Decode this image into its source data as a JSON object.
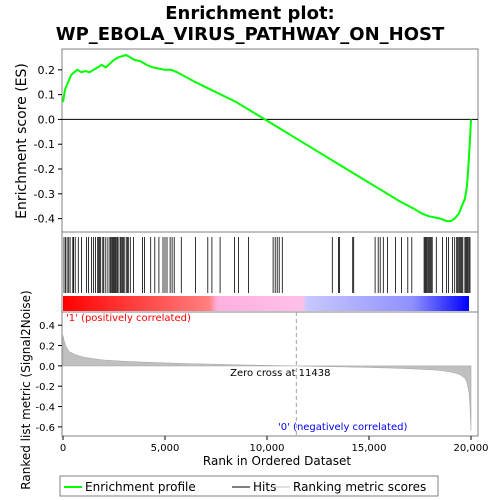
{
  "chart_data": {
    "type": "line",
    "title_line1": "Enrichment plot:",
    "title_line2": "WP_EBOLA_VIRUS_PATHWAY_ON_HOST",
    "es_panel": {
      "ylabel": "Enrichment score (ES)",
      "ylim": [
        -0.45,
        0.28
      ],
      "yticks": [
        "0.2",
        "0.1",
        "0.0",
        "-0.1",
        "-0.2",
        "-0.3",
        "-0.4"
      ],
      "ytick_values": [
        0.2,
        0.1,
        0.0,
        -0.1,
        -0.2,
        -0.3,
        -0.4
      ],
      "color": "#00ff00",
      "grid": false,
      "series": {
        "name": "Enrichment profile",
        "x": [
          0,
          100,
          250,
          400,
          550,
          700,
          900,
          1100,
          1300,
          1500,
          1700,
          1900,
          2100,
          2300,
          2500,
          2700,
          2900,
          3100,
          3300,
          3500,
          3800,
          4100,
          4400,
          4700,
          5000,
          5300,
          5600,
          6500,
          7500,
          8500,
          9500,
          10500,
          11500,
          12500,
          13500,
          14500,
          15500,
          16500,
          17200,
          17600,
          17900,
          18200,
          18500,
          18800,
          19000,
          19200,
          19400,
          19600,
          19700,
          19800,
          19850,
          19900,
          19950,
          20000
        ],
        "y": [
          0.07,
          0.12,
          0.15,
          0.18,
          0.19,
          0.2,
          0.19,
          0.195,
          0.19,
          0.2,
          0.21,
          0.22,
          0.21,
          0.225,
          0.24,
          0.25,
          0.255,
          0.26,
          0.25,
          0.24,
          0.235,
          0.22,
          0.21,
          0.205,
          0.2,
          0.2,
          0.19,
          0.15,
          0.11,
          0.07,
          0.02,
          -0.03,
          -0.08,
          -0.13,
          -0.18,
          -0.23,
          -0.28,
          -0.33,
          -0.36,
          -0.38,
          -0.39,
          -0.395,
          -0.4,
          -0.41,
          -0.41,
          -0.4,
          -0.38,
          -0.34,
          -0.32,
          -0.27,
          -0.22,
          -0.15,
          -0.08,
          0.0
        ]
      }
    },
    "hits": {
      "name": "Hits",
      "positions": [
        50,
        120,
        200,
        280,
        350,
        480,
        520,
        600,
        750,
        900,
        1150,
        1250,
        1400,
        1500,
        1600,
        1700,
        1750,
        1800,
        1850,
        1950,
        2000,
        2100,
        2200,
        2300,
        2350,
        2400,
        2450,
        2500,
        2550,
        2600,
        2650,
        2700,
        2800,
        2850,
        2900,
        2950,
        3000,
        3100,
        3150,
        3200,
        3300,
        3450,
        3900,
        4000,
        4300,
        4500,
        4700,
        4900,
        5000,
        5100,
        5250,
        5350,
        5450,
        5800,
        6500,
        7100,
        7300,
        7700,
        8400,
        8600,
        9100,
        10300,
        10400,
        10500,
        10600,
        10750,
        13200,
        13500,
        13550,
        14200,
        14250,
        15300,
        15450,
        15550,
        15700,
        15900,
        16300,
        16600,
        16900,
        17100,
        17700,
        17750,
        17800,
        17850,
        17900,
        17950,
        18000,
        18050,
        18100,
        18300,
        18600,
        18800,
        18900,
        19100,
        19200,
        19300,
        19350,
        19400,
        19450,
        19500,
        19550,
        19600,
        19700,
        19750,
        19800,
        19850,
        19900,
        19950
      ]
    },
    "rank_panel": {
      "ylabel": "Ranked list metric (Signal2Noise)",
      "xlabel": "Rank in Ordered Dataset",
      "xlim": [
        0,
        20000
      ],
      "ylim": [
        -0.68,
        0.52
      ],
      "yticks": [
        "0.4",
        "0.2",
        "0.0",
        "-0.2",
        "-0.4",
        "-0.6"
      ],
      "ytick_values": [
        0.4,
        0.2,
        0.0,
        -0.2,
        -0.4,
        -0.6
      ],
      "xticks": [
        "0",
        "5,000",
        "10,000",
        "15,000",
        "20,000"
      ],
      "xtick_values": [
        0,
        5000,
        10000,
        15000,
        20000
      ],
      "zero_cross_label": "Zero cross at 11438",
      "zero_cross": 11438,
      "pos_label": "'1' (positively correlated)",
      "neg_label": "'0' (negatively correlated)",
      "series": {
        "name": "Ranking metric scores",
        "x": [
          0,
          50,
          150,
          300,
          600,
          1000,
          1500,
          2000,
          3000,
          4000,
          5000,
          6000,
          7000,
          8000,
          9000,
          10000,
          11000,
          11438,
          12000,
          13000,
          14000,
          15000,
          16000,
          17000,
          18000,
          18500,
          19000,
          19300,
          19500,
          19700,
          19800,
          19900,
          19950,
          20000
        ],
        "y": [
          0.3,
          0.25,
          0.19,
          0.14,
          0.11,
          0.085,
          0.07,
          0.058,
          0.045,
          0.036,
          0.029,
          0.023,
          0.018,
          0.013,
          0.009,
          0.005,
          0.001,
          0.0,
          -0.003,
          -0.007,
          -0.011,
          -0.016,
          -0.021,
          -0.028,
          -0.038,
          -0.046,
          -0.06,
          -0.074,
          -0.09,
          -0.12,
          -0.16,
          -0.26,
          -0.4,
          -0.64
        ]
      }
    },
    "legend": {
      "placement": "bottom",
      "entries": [
        "Enrichment profile",
        "Hits",
        "Ranking metric scores"
      ]
    }
  }
}
